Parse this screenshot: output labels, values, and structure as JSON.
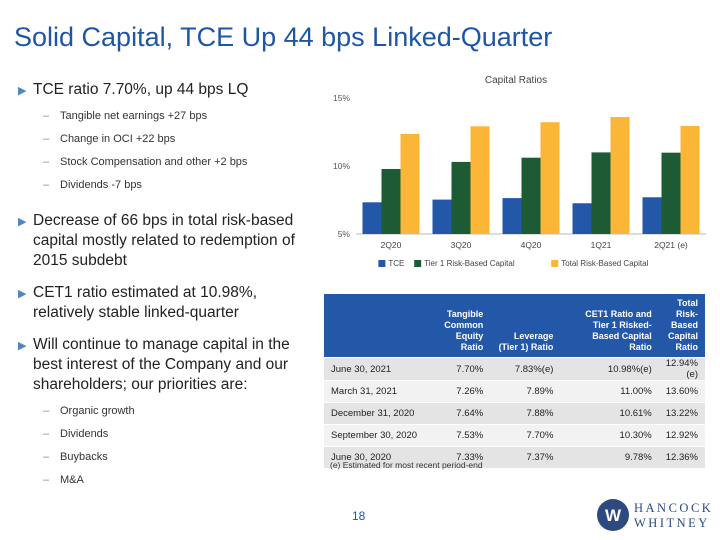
{
  "slide": {
    "title": "Solid Capital, TCE Up 44 bps Linked-Quarter",
    "page_number": "18",
    "footnote": "(e) Estimated for most recent period-end",
    "logo_line1": "HANCOCK",
    "logo_line2": "WHITNEY",
    "logo_mark": "W"
  },
  "bullets": [
    {
      "text": "TCE ratio 7.70%, up 44 bps LQ",
      "subs": [
        "Tangible net earnings +27 bps",
        "Change in OCI +22 bps",
        "Stock Compensation and other +2 bps",
        "Dividends -7 bps"
      ]
    },
    {
      "text": "Decrease of 66 bps in total risk-based capital mostly related to redemption of 2015 subdebt",
      "subs": []
    },
    {
      "text": "CET1 ratio estimated at 10.98%, relatively stable linked-quarter",
      "subs": []
    },
    {
      "text": "Will continue to manage capital in the best interest of the Company and our shareholders; our priorities are:",
      "subs": [
        "Organic growth",
        "Dividends",
        "Buybacks",
        "M&A"
      ]
    }
  ],
  "chart_data": {
    "type": "bar",
    "title": "Capital Ratios",
    "categories": [
      "2Q20",
      "3Q20",
      "4Q20",
      "1Q21",
      "2Q21 (e)"
    ],
    "series": [
      {
        "name": "TCE",
        "color": "#2357a8",
        "values": [
          7.33,
          7.53,
          7.64,
          7.26,
          7.7
        ]
      },
      {
        "name": "Tier 1 Risk-Based Capital",
        "color": "#1d5b34",
        "values": [
          9.78,
          10.3,
          10.61,
          11.0,
          10.98
        ]
      },
      {
        "name": "Total Risk-Based Capital",
        "color": "#fbb637",
        "values": [
          12.36,
          12.92,
          13.22,
          13.6,
          12.94
        ]
      }
    ],
    "ylim": [
      5,
      15
    ],
    "yticks": [
      "5%",
      "10%",
      "15%"
    ],
    "ytick_values": [
      5,
      10,
      15
    ],
    "legend_position": "bottom",
    "grid": false
  },
  "table": {
    "headers": [
      "",
      "Tangible Common Equity Ratio",
      "Leverage (Tier 1) Ratio",
      "CET1 Ratio and Tier 1 Risked-Based Capital Ratio",
      "Total Risk-Based Capital Ratio"
    ],
    "rows": [
      [
        "June 30, 2021",
        "7.70%",
        "7.83%(e)",
        "10.98%(e)",
        "12.94%(e)"
      ],
      [
        "March 31, 2021",
        "7.26%",
        "7.89%",
        "11.00%",
        "13.60%"
      ],
      [
        "December 31, 2020",
        "7.64%",
        "7.88%",
        "10.61%",
        "13.22%"
      ],
      [
        "September 30, 2020",
        "7.53%",
        "7.70%",
        "10.30%",
        "12.92%"
      ],
      [
        "June 30, 2020",
        "7.33%",
        "7.37%",
        "9.78%",
        "12.36%"
      ]
    ]
  }
}
